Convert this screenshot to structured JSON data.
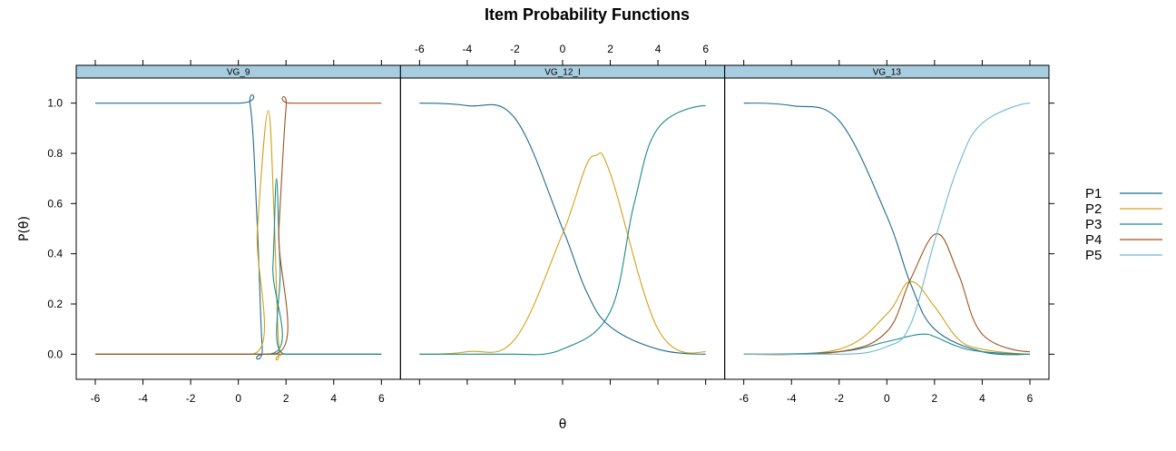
{
  "chart_data": {
    "type": "line",
    "title": "Item Probability Functions",
    "xlabel": "θ",
    "ylabel": "P(θ)",
    "xlim": [
      -7,
      7
    ],
    "ylim": [
      -0.1,
      1.1
    ],
    "x_ticks": [
      -6,
      -4,
      -2,
      0,
      2,
      4,
      6
    ],
    "y_ticks": [
      0.0,
      0.2,
      0.4,
      0.6,
      0.8,
      1.0
    ],
    "x_tick_labels": [
      "-6",
      "-4",
      "-2",
      "0",
      "2",
      "4",
      "6"
    ],
    "y_tick_labels": [
      "0.0",
      "0.2",
      "0.4",
      "0.6",
      "0.8",
      "1.0"
    ],
    "grid": false,
    "legend_position": "right",
    "legend": [
      {
        "name": "P1",
        "color": "#1f6b8e"
      },
      {
        "name": "P2",
        "color": "#d4a017"
      },
      {
        "name": "P3",
        "color": "#1a8a8a"
      },
      {
        "name": "P4",
        "color": "#a0521d"
      },
      {
        "name": "P5",
        "color": "#6fb8d4"
      }
    ],
    "panels": [
      {
        "label": "VG_9",
        "series": [
          {
            "name": "P1",
            "points": [
              [
                -6,
                1.0
              ],
              [
                0,
                1.0
              ],
              [
                0.5,
                0.99
              ],
              [
                0.8,
                0.5
              ],
              [
                1.0,
                0.03
              ],
              [
                1.2,
                0.0
              ],
              [
                6,
                0.0
              ]
            ]
          },
          {
            "name": "P2",
            "points": [
              [
                -6,
                0.0
              ],
              [
                0.5,
                0.0
              ],
              [
                0.8,
                0.5
              ],
              [
                1.25,
                0.97
              ],
              [
                1.5,
                0.55
              ],
              [
                1.7,
                0.03
              ],
              [
                2.0,
                0.0
              ],
              [
                6,
                0.0
              ]
            ]
          },
          {
            "name": "P3",
            "points": [
              [
                -6,
                0.0
              ],
              [
                1.2,
                0.0
              ],
              [
                1.45,
                0.35
              ],
              [
                1.6,
                0.7
              ],
              [
                1.75,
                0.35
              ],
              [
                2.0,
                0.0
              ],
              [
                6,
                0.0
              ]
            ]
          },
          {
            "name": "P4",
            "points": [
              [
                -6,
                0.0
              ],
              [
                1.4,
                0.0
              ],
              [
                1.7,
                0.5
              ],
              [
                2.0,
                0.98
              ],
              [
                2.2,
                1.0
              ],
              [
                6,
                1.0
              ]
            ]
          }
        ]
      },
      {
        "label": "VG_12_I",
        "series": [
          {
            "name": "P1",
            "points": [
              [
                -6,
                1.0
              ],
              [
                -4,
                0.99
              ],
              [
                -2,
                0.94
              ],
              [
                0,
                0.5
              ],
              [
                1,
                0.25
              ],
              [
                2,
                0.11
              ],
              [
                4,
                0.02
              ],
              [
                6,
                0.0
              ]
            ]
          },
          {
            "name": "P2",
            "points": [
              [
                -6,
                0.0
              ],
              [
                -4,
                0.01
              ],
              [
                -2,
                0.06
              ],
              [
                0,
                0.48
              ],
              [
                1.3,
                0.79
              ],
              [
                2,
                0.72
              ],
              [
                4,
                0.1
              ],
              [
                6,
                0.01
              ]
            ]
          },
          {
            "name": "P3",
            "points": [
              [
                -6,
                0.0
              ],
              [
                -4,
                0.0
              ],
              [
                -2,
                0.0
              ],
              [
                0,
                0.02
              ],
              [
                2,
                0.17
              ],
              [
                3,
                0.6
              ],
              [
                4,
                0.9
              ],
              [
                6,
                0.99
              ]
            ]
          }
        ]
      },
      {
        "label": "VG_13",
        "series": [
          {
            "name": "P1",
            "points": [
              [
                -6,
                1.0
              ],
              [
                -4,
                0.99
              ],
              [
                -2,
                0.93
              ],
              [
                0,
                0.55
              ],
              [
                1,
                0.28
              ],
              [
                2,
                0.1
              ],
              [
                4,
                0.01
              ],
              [
                6,
                0.0
              ]
            ]
          },
          {
            "name": "P2",
            "points": [
              [
                -6,
                0.0
              ],
              [
                -2,
                0.02
              ],
              [
                0,
                0.16
              ],
              [
                1,
                0.29
              ],
              [
                2,
                0.19
              ],
              [
                3,
                0.06
              ],
              [
                4,
                0.02
              ],
              [
                6,
                0.0
              ]
            ]
          },
          {
            "name": "P3",
            "points": [
              [
                -6,
                0.0
              ],
              [
                -2,
                0.01
              ],
              [
                0,
                0.05
              ],
              [
                1.5,
                0.08
              ],
              [
                2,
                0.07
              ],
              [
                3,
                0.03
              ],
              [
                4,
                0.01
              ],
              [
                6,
                0.0
              ]
            ]
          },
          {
            "name": "P4",
            "points": [
              [
                -6,
                0.0
              ],
              [
                -2,
                0.01
              ],
              [
                0,
                0.09
              ],
              [
                1,
                0.3
              ],
              [
                2.1,
                0.48
              ],
              [
                3,
                0.32
              ],
              [
                4,
                0.08
              ],
              [
                6,
                0.01
              ]
            ]
          },
          {
            "name": "P5",
            "points": [
              [
                -6,
                0.0
              ],
              [
                -2,
                0.0
              ],
              [
                0,
                0.03
              ],
              [
                1,
                0.12
              ],
              [
                2,
                0.45
              ],
              [
                3,
                0.75
              ],
              [
                4,
                0.92
              ],
              [
                6,
                1.0
              ]
            ]
          }
        ]
      }
    ]
  }
}
